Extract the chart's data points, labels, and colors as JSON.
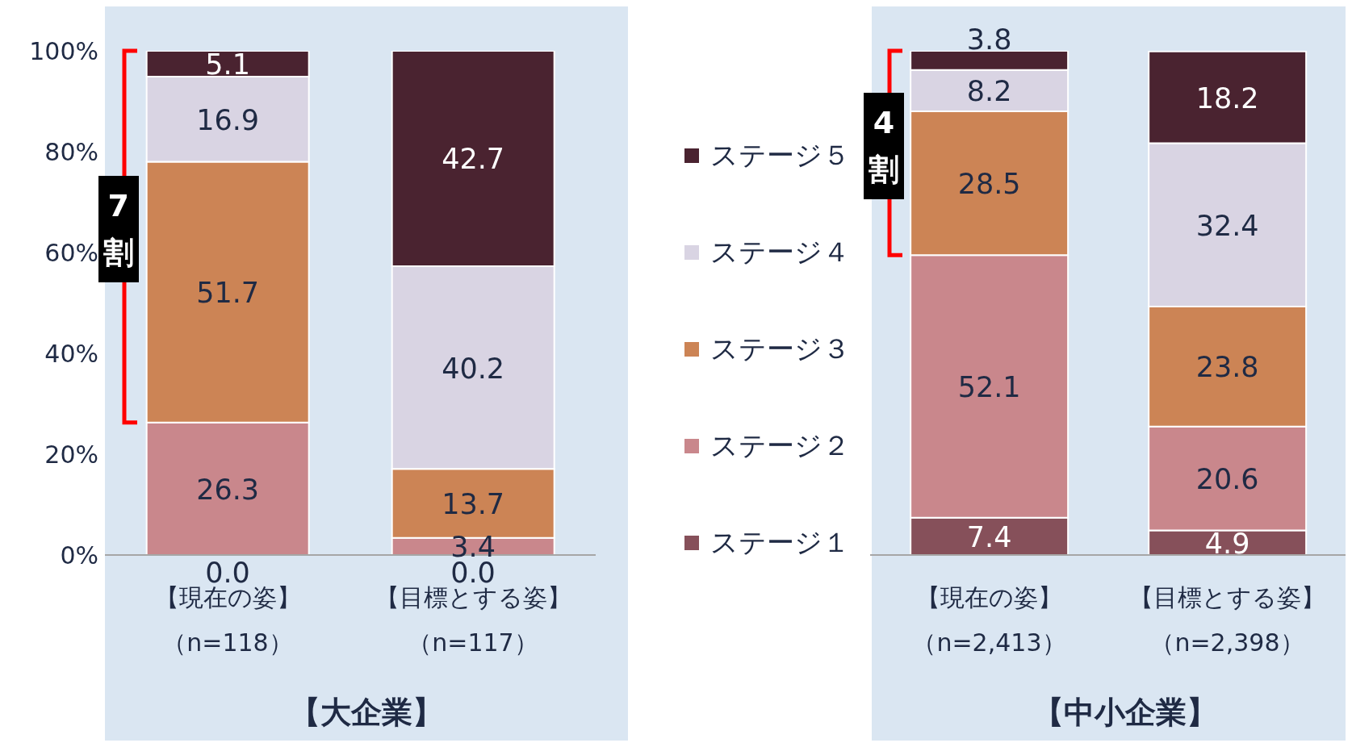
{
  "chart_data": [
    {
      "type": "bar",
      "stacked": true,
      "xlabel": "【大企業】",
      "categories": [
        "【現在の姿】（n=118）",
        "【目標とする姿】（n=117）"
      ],
      "series": [
        {
          "name": "ステージ１",
          "color": "#86505a",
          "values": [
            0.0,
            0.0
          ],
          "value_labels": [
            "0.0",
            "0.0"
          ]
        },
        {
          "name": "ステージ２",
          "color": "#c9878c",
          "values": [
            26.3,
            3.4
          ],
          "value_labels": [
            "26.3",
            "3.4"
          ]
        },
        {
          "name": "ステージ３",
          "color": "#cc8455",
          "values": [
            51.7,
            13.7
          ],
          "value_labels": [
            "51.7",
            "13.7"
          ]
        },
        {
          "name": "ステージ４",
          "color": "#d9d4e3",
          "values": [
            16.9,
            40.2
          ],
          "value_labels": [
            "16.9",
            "40.2"
          ]
        },
        {
          "name": "ステージ５",
          "color": "#4a2330",
          "values": [
            5.1,
            42.7
          ],
          "value_labels": [
            "5.1",
            "42.7"
          ]
        }
      ],
      "ylim": [
        0,
        100
      ],
      "yticks": [
        {
          "value": 0,
          "label": "0%"
        },
        {
          "value": 20,
          "label": "20%"
        },
        {
          "value": 40,
          "label": "40%"
        },
        {
          "value": 60,
          "label": "60%"
        },
        {
          "value": 80,
          "label": "80%"
        },
        {
          "value": 100,
          "label": "100%"
        }
      ],
      "annotations": [
        "7割"
      ],
      "legend": "right",
      "grid": false
    },
    {
      "type": "bar",
      "stacked": true,
      "xlabel": "【中小企業】",
      "categories": [
        "【現在の姿】（n=2,413）",
        "【目標とする姿】（n=2,398）"
      ],
      "series": [
        {
          "color": "#86505a",
          "values": [
            7.4,
            4.9
          ],
          "value_labels": [
            "7.4",
            "4.9"
          ]
        },
        {
          "color": "#c9878c",
          "values": [
            52.1,
            20.6
          ],
          "value_labels": [
            "52.1",
            "20.6"
          ]
        },
        {
          "color": "#cc8455",
          "values": [
            28.5,
            23.8
          ],
          "value_labels": [
            "28.5",
            "23.8"
          ]
        },
        {
          "color": "#d9d4e3",
          "values": [
            8.2,
            32.4
          ],
          "value_labels": [
            "8.2",
            "32.4"
          ]
        },
        {
          "color": "#4a2330",
          "values": [
            3.8,
            18.2
          ],
          "value_labels": [
            "3.8",
            "18.2"
          ]
        }
      ],
      "ylim": [
        0,
        100
      ],
      "tick_labels": "x",
      "annotations": [
        "4割"
      ],
      "grid": false
    }
  ]
}
